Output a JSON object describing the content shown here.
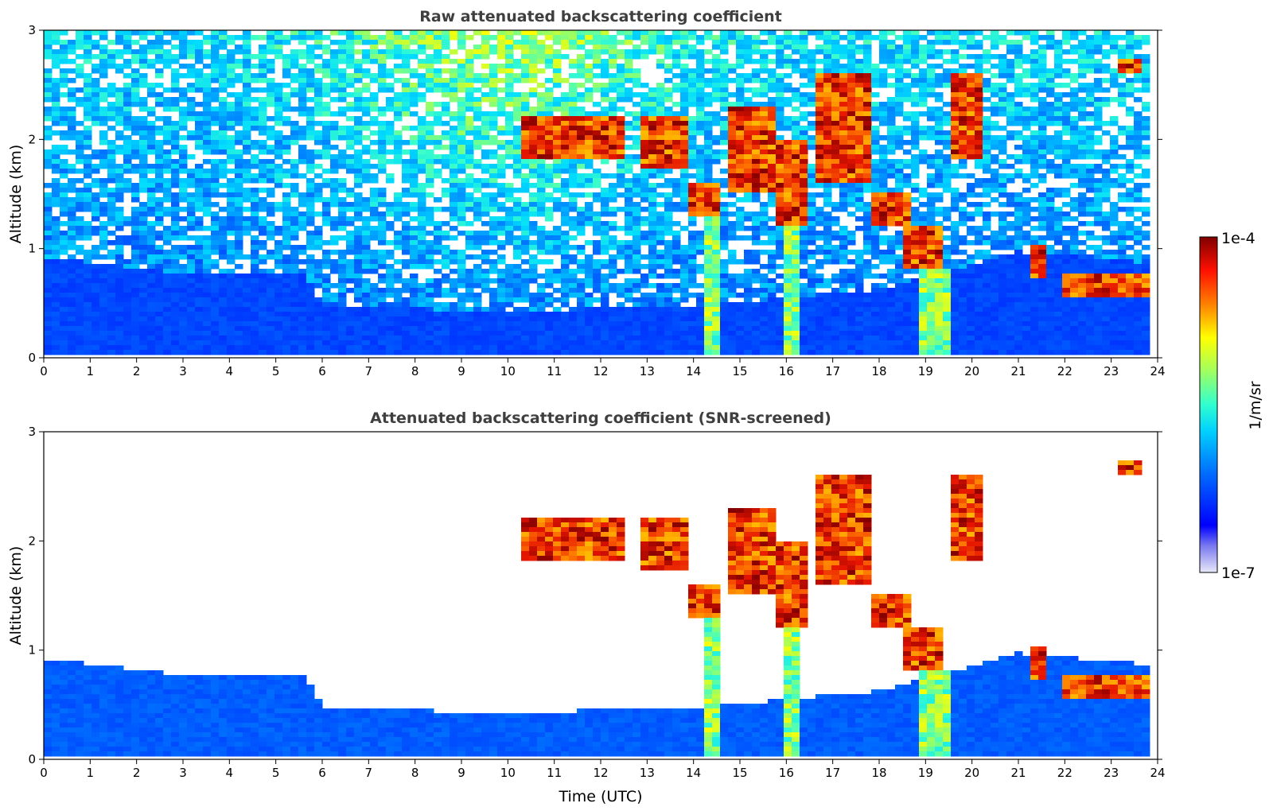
{
  "chart_data": [
    {
      "type": "heatmap",
      "title": "Raw attenuated backscattering coefficient",
      "xlabel": "",
      "ylabel": "Altitude (km)",
      "xlim": [
        0,
        24
      ],
      "ylim": [
        0,
        3
      ],
      "xticks": [
        "0",
        "1",
        "2",
        "3",
        "4",
        "5",
        "6",
        "7",
        "8",
        "9",
        "10",
        "11",
        "12",
        "13",
        "14",
        "15",
        "16",
        "17",
        "18",
        "19",
        "20",
        "21",
        "22",
        "23",
        "24"
      ],
      "yticks": [
        "0",
        "1",
        "2",
        "3"
      ],
      "clouds": [
        {
          "t": [
            10.3,
            12.5
          ],
          "alt": [
            1.8,
            2.2
          ]
        },
        {
          "t": [
            12.8,
            13.8
          ],
          "alt": [
            1.7,
            2.2
          ]
        },
        {
          "t": [
            13.8,
            14.5
          ],
          "alt": [
            1.3,
            1.6
          ]
        },
        {
          "t": [
            14.3,
            14.5
          ],
          "alt": [
            0.0,
            1.3
          ]
        },
        {
          "t": [
            14.8,
            15.8
          ],
          "alt": [
            1.5,
            2.3
          ]
        },
        {
          "t": [
            15.8,
            16.4
          ],
          "alt": [
            1.2,
            2.0
          ]
        },
        {
          "t": [
            16.0,
            16.3
          ],
          "alt": [
            0.0,
            1.2
          ]
        },
        {
          "t": [
            16.7,
            17.9
          ],
          "alt": [
            1.6,
            2.6
          ]
        },
        {
          "t": [
            17.9,
            18.6
          ],
          "alt": [
            1.2,
            1.5
          ]
        },
        {
          "t": [
            18.6,
            19.4
          ],
          "alt": [
            0.8,
            1.2
          ]
        },
        {
          "t": [
            18.9,
            19.6
          ],
          "alt": [
            0.0,
            0.8
          ]
        },
        {
          "t": [
            19.6,
            20.2
          ],
          "alt": [
            1.8,
            2.6
          ]
        },
        {
          "t": [
            21.2,
            21.6
          ],
          "alt": [
            0.7,
            1.0
          ]
        },
        {
          "t": [
            22.0,
            23.8
          ],
          "alt": [
            0.55,
            0.75
          ]
        },
        {
          "t": [
            23.2,
            23.6
          ],
          "alt": [
            2.6,
            2.75
          ]
        }
      ],
      "boundary_layer_top_km": {
        "t": [
          0,
          3,
          5.6,
          6,
          10,
          14,
          18,
          21,
          23.8
        ],
        "alt": [
          0.9,
          0.75,
          0.75,
          0.45,
          0.4,
          0.45,
          0.6,
          0.95,
          0.85
        ]
      }
    },
    {
      "type": "heatmap",
      "title": "Attenuated backscattering coefficient (SNR-screened)",
      "xlabel": "Time (UTC)",
      "ylabel": "Altitude (km)",
      "xlim": [
        0,
        24
      ],
      "ylim": [
        0,
        3
      ],
      "xticks": [
        "0",
        "1",
        "2",
        "3",
        "4",
        "5",
        "6",
        "7",
        "8",
        "9",
        "10",
        "11",
        "12",
        "13",
        "14",
        "15",
        "16",
        "17",
        "18",
        "19",
        "20",
        "21",
        "22",
        "23",
        "24"
      ],
      "yticks": [
        "0",
        "1",
        "2",
        "3"
      ]
    }
  ],
  "colorbar": {
    "label": "1/m/sr",
    "max_label": "1e-4",
    "min_label": "1e-7",
    "scale": "log",
    "range": [
      1e-07,
      0.0001
    ],
    "colormap": "jet"
  }
}
